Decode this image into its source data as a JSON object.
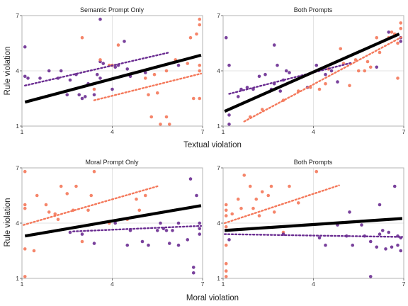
{
  "colors": {
    "purple": "#6a2c91",
    "salmon": "#f4785a",
    "black": "#000000",
    "grid": "#e3e3e3",
    "frame": "#b3b3b3"
  },
  "figure": {
    "row1_xlabel": "Textual violation",
    "row2_xlabel": "Moral violation",
    "ylabel": "Rule violation"
  },
  "chart_data": [
    {
      "type": "scatter",
      "title": "Semantic Prompt Only",
      "xlim": [
        1,
        7
      ],
      "ylim": [
        1,
        7
      ],
      "xticks": [
        "1",
        "4",
        "7"
      ],
      "yticks": [
        "1",
        "4",
        "7"
      ],
      "grid": true,
      "series": [
        {
          "color": "purple",
          "points": [
            [
              1.1,
              5.3
            ],
            [
              1.1,
              3.7
            ],
            [
              1.2,
              3.6
            ],
            [
              1.6,
              3.6
            ],
            [
              1.9,
              4.0
            ],
            [
              2.2,
              3.6
            ],
            [
              2.3,
              4.0
            ],
            [
              2.5,
              2.7
            ],
            [
              2.6,
              3.5
            ],
            [
              2.8,
              3.8
            ],
            [
              2.9,
              2.7
            ],
            [
              3.0,
              2.5
            ],
            [
              3.1,
              2.6
            ],
            [
              3.2,
              3.3
            ],
            [
              3.4,
              2.7
            ],
            [
              3.5,
              3.8
            ],
            [
              3.6,
              6.8
            ],
            [
              3.6,
              4.5
            ],
            [
              3.6,
              3.6
            ],
            [
              3.7,
              4.4
            ],
            [
              4.0,
              3.0
            ],
            [
              4.1,
              4.2
            ],
            [
              4.2,
              4.3
            ],
            [
              4.4,
              5.6
            ],
            [
              4.5,
              4.1
            ],
            [
              4.6,
              3.7
            ],
            [
              5.1,
              3.9
            ],
            [
              6.2,
              4.3
            ]
          ],
          "fit": [
            [
              1.1,
              3.2
            ],
            [
              5.9,
              5.0
            ]
          ]
        },
        {
          "color": "salmon",
          "points": [
            [
              3.0,
              5.8
            ],
            [
              3.4,
              3.0
            ],
            [
              3.6,
              4.6
            ],
            [
              3.9,
              4.3
            ],
            [
              4.0,
              4.3
            ],
            [
              4.2,
              5.4
            ],
            [
              5.1,
              3.6
            ],
            [
              5.2,
              2.7
            ],
            [
              5.3,
              1.5
            ],
            [
              5.4,
              3.8
            ],
            [
              5.5,
              2.8
            ],
            [
              5.6,
              1.1
            ],
            [
              5.8,
              1.5
            ],
            [
              5.8,
              4.0
            ],
            [
              5.9,
              1.1
            ],
            [
              6.1,
              4.6
            ],
            [
              6.5,
              4.4
            ],
            [
              6.6,
              5.8
            ],
            [
              6.7,
              2.5
            ],
            [
              6.8,
              6.0
            ],
            [
              6.9,
              6.8
            ],
            [
              6.9,
              6.5
            ],
            [
              6.9,
              4.3
            ],
            [
              6.9,
              4.0
            ],
            [
              6.9,
              2.5
            ]
          ],
          "fit": [
            [
              3.4,
              2.4
            ],
            [
              6.95,
              3.85
            ]
          ]
        }
      ],
      "overall_fit": [
        [
          1.1,
          2.3
        ],
        [
          6.95,
          4.85
        ]
      ]
    },
    {
      "type": "scatter",
      "title": "Both Prompts",
      "xlim": [
        1,
        7
      ],
      "ylim": [
        1,
        7
      ],
      "xticks": [
        "1",
        "4",
        "7"
      ],
      "yticks": [
        "1",
        "4",
        "7"
      ],
      "grid": true,
      "series": [
        {
          "color": "purple",
          "points": [
            [
              1.1,
              5.8
            ],
            [
              1.2,
              4.3
            ],
            [
              1.2,
              1.6
            ],
            [
              1.2,
              1.1
            ],
            [
              1.5,
              2.6
            ],
            [
              1.6,
              3.0
            ],
            [
              1.8,
              3.1
            ],
            [
              2.0,
              3.0
            ],
            [
              2.2,
              3.7
            ],
            [
              2.4,
              3.8
            ],
            [
              2.6,
              3.0
            ],
            [
              2.7,
              5.4
            ],
            [
              2.7,
              3.3
            ],
            [
              2.8,
              4.3
            ],
            [
              2.9,
              2.9
            ],
            [
              3.0,
              3.5
            ],
            [
              3.1,
              4.0
            ],
            [
              3.2,
              3.9
            ],
            [
              3.8,
              3.1
            ],
            [
              4.1,
              4.3
            ],
            [
              4.4,
              3.8
            ],
            [
              4.6,
              4.0
            ],
            [
              4.8,
              3.4
            ],
            [
              6.1,
              4.2
            ],
            [
              6.5,
              6.1
            ],
            [
              6.9,
              5.8
            ],
            [
              6.9,
              5.6
            ]
          ],
          "fit": [
            [
              1.2,
              2.75
            ],
            [
              5.3,
              4.45
            ]
          ]
        },
        {
          "color": "salmon",
          "points": [
            [
              1.9,
              1.5
            ],
            [
              2.3,
              1.9
            ],
            [
              3.0,
              2.4
            ],
            [
              3.5,
              2.9
            ],
            [
              3.9,
              3.1
            ],
            [
              4.2,
              3.0
            ],
            [
              4.4,
              3.3
            ],
            [
              4.5,
              4.1
            ],
            [
              4.9,
              5.2
            ],
            [
              5.0,
              4.4
            ],
            [
              5.2,
              3.2
            ],
            [
              5.4,
              4.6
            ],
            [
              5.5,
              4.0
            ],
            [
              5.7,
              4.0
            ],
            [
              5.8,
              4.5
            ],
            [
              5.9,
              4.2
            ],
            [
              6.1,
              5.8
            ],
            [
              6.2,
              5.0
            ],
            [
              6.3,
              5.6
            ],
            [
              6.5,
              5.8
            ],
            [
              6.6,
              6.1
            ],
            [
              6.7,
              6.0
            ],
            [
              6.8,
              5.5
            ],
            [
              6.9,
              6.6
            ],
            [
              6.9,
              6.3
            ],
            [
              6.8,
              3.6
            ]
          ],
          "fit": [
            [
              1.7,
              1.25
            ],
            [
              6.95,
              5.85
            ]
          ]
        }
      ],
      "overall_fit": [
        [
          1.05,
          1.8
        ],
        [
          6.85,
          6.0
        ]
      ]
    },
    {
      "type": "scatter",
      "title": "Moral Prompt Only",
      "xlim": [
        1,
        7
      ],
      "ylim": [
        1,
        7
      ],
      "xticks": [
        "1",
        "4",
        "7"
      ],
      "yticks": [
        "1",
        "4",
        "7"
      ],
      "grid": true,
      "series": [
        {
          "color": "salmon",
          "points": [
            [
              1.1,
              6.8
            ],
            [
              1.1,
              5.0
            ],
            [
              1.1,
              4.8
            ],
            [
              1.1,
              2.6
            ],
            [
              1.1,
              1.1
            ],
            [
              1.4,
              2.5
            ],
            [
              1.5,
              5.5
            ],
            [
              1.8,
              5.0
            ],
            [
              1.9,
              4.6
            ],
            [
              2.1,
              4.5
            ],
            [
              2.2,
              4.2
            ],
            [
              2.3,
              6.0
            ],
            [
              2.5,
              5.6
            ],
            [
              2.7,
              4.7
            ],
            [
              2.8,
              6.0
            ],
            [
              3.0,
              3.0
            ],
            [
              3.2,
              4.7
            ],
            [
              3.3,
              5.5
            ],
            [
              3.4,
              6.8
            ],
            [
              3.9,
              4.0
            ],
            [
              4.5,
              4.2
            ],
            [
              4.8,
              5.3
            ],
            [
              4.9,
              4.7
            ],
            [
              5.1,
              5.5
            ]
          ],
          "fit": [
            [
              1.05,
              3.9
            ],
            [
              5.5,
              6.0
            ]
          ]
        },
        {
          "color": "purple",
          "points": [
            [
              2.6,
              3.5
            ],
            [
              3.0,
              3.4
            ],
            [
              3.4,
              2.9
            ],
            [
              4.1,
              4.0
            ],
            [
              4.5,
              2.8
            ],
            [
              4.6,
              3.6
            ],
            [
              5.0,
              3.0
            ],
            [
              5.2,
              2.8
            ],
            [
              5.5,
              3.6
            ],
            [
              5.6,
              4.0
            ],
            [
              5.7,
              3.7
            ],
            [
              5.8,
              3.6
            ],
            [
              5.9,
              2.9
            ],
            [
              6.0,
              3.6
            ],
            [
              6.2,
              2.8
            ],
            [
              6.2,
              4.0
            ],
            [
              6.5,
              3.1
            ],
            [
              6.6,
              6.4
            ],
            [
              6.7,
              1.6
            ],
            [
              6.7,
              1.3
            ],
            [
              6.8,
              5.5
            ],
            [
              6.9,
              3.7
            ],
            [
              6.9,
              3.4
            ],
            [
              6.9,
              4.0
            ]
          ],
          "fit": [
            [
              2.7,
              3.55
            ],
            [
              6.95,
              3.85
            ]
          ]
        }
      ],
      "overall_fit": [
        [
          1.1,
          3.3
        ],
        [
          6.95,
          4.95
        ]
      ]
    },
    {
      "type": "scatter",
      "title": "Both Prompts",
      "xlim": [
        1,
        7
      ],
      "ylim": [
        1,
        7
      ],
      "xticks": [
        "1",
        "4",
        "7"
      ],
      "yticks": [
        "1",
        "4",
        "7"
      ],
      "grid": true,
      "series": [
        {
          "color": "salmon",
          "points": [
            [
              1.1,
              5.0
            ],
            [
              1.1,
              4.7
            ],
            [
              1.1,
              4.4
            ],
            [
              1.1,
              3.8
            ],
            [
              1.1,
              2.8
            ],
            [
              1.1,
              1.8
            ],
            [
              1.1,
              1.4
            ],
            [
              1.1,
              1.1
            ],
            [
              1.3,
              4.5
            ],
            [
              1.5,
              5.3
            ],
            [
              1.6,
              4.8
            ],
            [
              1.7,
              6.6
            ],
            [
              1.9,
              6.0
            ],
            [
              2.0,
              4.8
            ],
            [
              2.1,
              5.3
            ],
            [
              2.2,
              4.4
            ],
            [
              2.3,
              5.7
            ],
            [
              2.5,
              5.5
            ],
            [
              2.6,
              6.0
            ],
            [
              2.7,
              4.6
            ],
            [
              3.0,
              3.5
            ],
            [
              3.2,
              6.0
            ],
            [
              3.5,
              5.1
            ],
            [
              4.1,
              6.8
            ]
          ],
          "fit": [
            [
              1.05,
              4.0
            ],
            [
              4.85,
              6.05
            ]
          ]
        },
        {
          "color": "purple",
          "points": [
            [
              1.2,
              3.1
            ],
            [
              3.0,
              3.4
            ],
            [
              4.2,
              3.2
            ],
            [
              4.4,
              2.8
            ],
            [
              4.8,
              3.9
            ],
            [
              5.1,
              3.3
            ],
            [
              5.2,
              4.6
            ],
            [
              5.3,
              2.8
            ],
            [
              5.6,
              3.9
            ],
            [
              5.7,
              3.3
            ],
            [
              5.9,
              3.0
            ],
            [
              5.9,
              1.1
            ],
            [
              6.1,
              2.7
            ],
            [
              6.2,
              5.0
            ],
            [
              6.2,
              3.4
            ],
            [
              6.3,
              3.6
            ],
            [
              6.4,
              2.6
            ],
            [
              6.5,
              3.5
            ],
            [
              6.6,
              2.7
            ],
            [
              6.7,
              6.0
            ],
            [
              6.8,
              3.3
            ],
            [
              6.8,
              2.8
            ],
            [
              6.9,
              2.5
            ],
            [
              6.9,
              3.2
            ]
          ],
          "fit": [
            [
              1.05,
              3.4
            ],
            [
              6.95,
              3.25
            ]
          ]
        }
      ],
      "overall_fit": [
        [
          1.05,
          3.6
        ],
        [
          6.95,
          4.25
        ]
      ]
    }
  ]
}
